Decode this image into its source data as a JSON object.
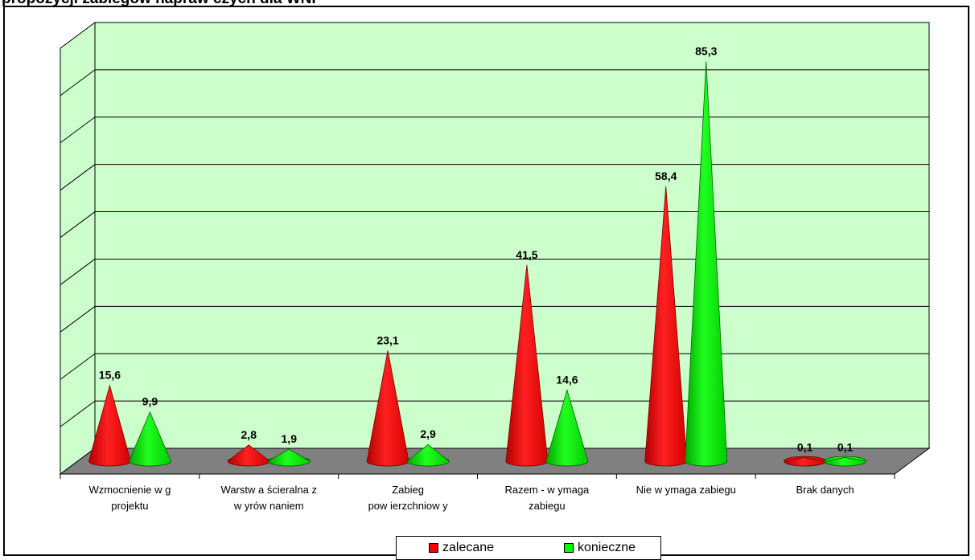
{
  "title": "propozycji zabiegów napraw czych dla WNP",
  "chart_data": {
    "type": "bar",
    "style": "3d-cone",
    "categories": [
      [
        "Wzmocnienie w g",
        "projektu"
      ],
      [
        "Warstw a ścieralna z",
        "w yrów naniem"
      ],
      [
        "Zabieg",
        "pow ierzchniow y"
      ],
      [
        "Razem - w ymaga",
        "zabiegu"
      ],
      [
        "Nie w ymaga zabiegu"
      ],
      [
        "Brak danych"
      ]
    ],
    "series": [
      {
        "name": "zalecane",
        "color": "#ff0000",
        "values": [
          15.6,
          2.8,
          23.1,
          41.5,
          58.4,
          0.1
        ],
        "labels": [
          "15,6",
          "2,8",
          "23,1",
          "41,5",
          "58,4",
          "0,1"
        ]
      },
      {
        "name": "konieczne",
        "color": "#00ff00",
        "values": [
          9.9,
          1.9,
          2.9,
          14.6,
          85.3,
          0.1
        ],
        "labels": [
          "9,9",
          "1,9",
          "2,9",
          "14,6",
          "85,3",
          "0,1"
        ]
      }
    ],
    "ylim": [
      0,
      90
    ],
    "grid": true,
    "wall_color": "#ccffcc",
    "floor_color": "#808080",
    "legend_position": "bottom"
  },
  "legend": {
    "items": [
      {
        "label": "zalecane",
        "color": "#ff0000"
      },
      {
        "label": "konieczne",
        "color": "#00ff00"
      }
    ]
  }
}
